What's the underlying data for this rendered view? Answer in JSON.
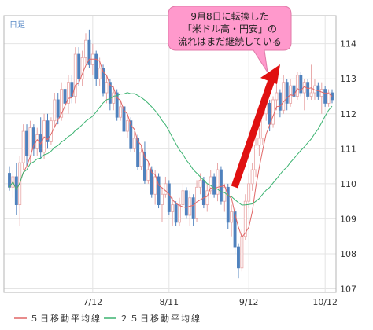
{
  "chart_data": {
    "type": "candlestick",
    "corner_label": "日足",
    "title": "",
    "xlabel": "",
    "ylabel": "",
    "ylim": [
      106.9,
      114.8
    ],
    "yticks": [
      107,
      108,
      109,
      110,
      111,
      112,
      113,
      114
    ],
    "xticks": [
      {
        "label": "7/12",
        "x": 24
      },
      {
        "label": "8/11",
        "x": 46
      },
      {
        "label": "9/12",
        "x": 69
      },
      {
        "label": "10/12",
        "x": 91
      }
    ],
    "grid": true,
    "legend": {
      "placement": "bottom-left",
      "entries": [
        {
          "label": "５日移動平均線",
          "color": "#e06666"
        },
        {
          "label": "２５日移動平均線",
          "color": "#3cb371"
        }
      ]
    },
    "colors": {
      "up": "#e8a7a7",
      "down": "#4f81bd",
      "ma5": "#e06666",
      "ma25": "#3cb371",
      "arrow": "#e01010",
      "callout": "#ff99cc"
    },
    "annotation": {
      "lines": [
        "9月8日に転換した",
        "「米ドル高・円安」の",
        "流れはまだ継続している"
      ]
    },
    "ohlc": [
      [
        110.3,
        110.5,
        109.8,
        109.9
      ],
      [
        109.9,
        110.4,
        109.6,
        110.2
      ],
      [
        110.2,
        110.6,
        109.1,
        109.4
      ],
      [
        109.4,
        110.8,
        108.8,
        110.6
      ],
      [
        110.6,
        111.7,
        110.4,
        111.5
      ],
      [
        111.5,
        111.7,
        110.5,
        110.8
      ],
      [
        110.8,
        111.8,
        110.6,
        111.6
      ],
      [
        111.6,
        111.7,
        110.8,
        111.0
      ],
      [
        111.0,
        111.6,
        110.8,
        111.4
      ],
      [
        111.4,
        111.9,
        110.7,
        110.9
      ],
      [
        110.9,
        112.0,
        110.7,
        111.8
      ],
      [
        111.8,
        112.0,
        111.0,
        111.2
      ],
      [
        111.2,
        111.9,
        111.1,
        111.8
      ],
      [
        111.8,
        112.6,
        111.6,
        112.4
      ],
      [
        112.4,
        112.6,
        111.7,
        111.9
      ],
      [
        111.9,
        112.9,
        111.8,
        112.7
      ],
      [
        112.7,
        112.8,
        112.1,
        112.3
      ],
      [
        112.3,
        113.1,
        112.0,
        112.9
      ],
      [
        112.9,
        113.1,
        112.3,
        112.5
      ],
      [
        112.5,
        113.9,
        112.3,
        113.7
      ],
      [
        113.7,
        113.9,
        112.8,
        113.0
      ],
      [
        113.0,
        113.8,
        112.8,
        113.6
      ],
      [
        113.6,
        114.3,
        113.4,
        114.1
      ],
      [
        114.1,
        114.4,
        113.3,
        113.4
      ],
      [
        113.4,
        114.0,
        113.1,
        113.7
      ],
      [
        113.7,
        113.8,
        112.8,
        113.0
      ],
      [
        113.0,
        113.6,
        112.8,
        113.3
      ],
      [
        113.3,
        113.4,
        112.5,
        112.6
      ],
      [
        112.6,
        113.1,
        112.3,
        112.9
      ],
      [
        112.9,
        113.0,
        112.1,
        112.3
      ],
      [
        112.3,
        112.8,
        112.1,
        112.6
      ],
      [
        112.6,
        112.7,
        111.8,
        111.9
      ],
      [
        111.9,
        112.4,
        111.8,
        112.2
      ],
      [
        112.2,
        112.3,
        111.4,
        111.5
      ],
      [
        111.5,
        112.0,
        111.3,
        111.8
      ],
      [
        111.8,
        111.9,
        110.9,
        111.0
      ],
      [
        111.0,
        111.5,
        110.9,
        111.3
      ],
      [
        111.3,
        111.4,
        110.4,
        110.5
      ],
      [
        110.5,
        111.1,
        110.4,
        110.9
      ],
      [
        110.9,
        111.2,
        110.0,
        110.1
      ],
      [
        110.1,
        110.6,
        110.0,
        110.4
      ],
      [
        110.4,
        110.5,
        109.6,
        109.7
      ],
      [
        109.7,
        110.4,
        109.4,
        110.2
      ],
      [
        110.2,
        110.3,
        109.3,
        109.4
      ],
      [
        109.4,
        109.9,
        108.9,
        109.7
      ],
      [
        109.7,
        110.2,
        109.6,
        110.0
      ],
      [
        110.0,
        110.1,
        109.1,
        109.2
      ],
      [
        109.2,
        109.6,
        108.8,
        109.4
      ],
      [
        109.4,
        109.5,
        108.8,
        108.9
      ],
      [
        108.9,
        109.6,
        108.8,
        109.4
      ],
      [
        109.4,
        110.0,
        109.2,
        109.8
      ],
      [
        109.8,
        109.9,
        109.0,
        109.1
      ],
      [
        109.1,
        109.8,
        108.8,
        109.6
      ],
      [
        109.6,
        109.7,
        108.8,
        109.0
      ],
      [
        109.0,
        110.1,
        108.9,
        109.9
      ],
      [
        109.9,
        110.3,
        109.7,
        110.1
      ],
      [
        110.1,
        110.2,
        109.3,
        109.4
      ],
      [
        109.4,
        110.0,
        109.2,
        109.8
      ],
      [
        109.8,
        110.4,
        109.7,
        110.2
      ],
      [
        110.2,
        110.3,
        109.6,
        109.7
      ],
      [
        109.7,
        110.6,
        109.5,
        110.4
      ],
      [
        110.4,
        110.5,
        109.4,
        109.5
      ],
      [
        109.5,
        110.0,
        109.2,
        109.9
      ],
      [
        109.9,
        110.0,
        108.7,
        108.9
      ],
      [
        108.9,
        109.4,
        108.5,
        109.2
      ],
      [
        109.2,
        109.3,
        108.0,
        108.2
      ],
      [
        108.2,
        108.3,
        107.3,
        107.6
      ],
      [
        107.6,
        108.7,
        107.5,
        108.5
      ],
      [
        108.5,
        109.7,
        108.4,
        109.5
      ],
      [
        109.5,
        110.3,
        109.3,
        110.0
      ],
      [
        110.0,
        110.6,
        109.8,
        110.4
      ],
      [
        110.4,
        111.3,
        110.2,
        111.1
      ],
      [
        111.1,
        111.6,
        110.8,
        111.3
      ],
      [
        111.3,
        112.2,
        111.1,
        112.0
      ],
      [
        112.0,
        112.5,
        111.8,
        112.3
      ],
      [
        112.3,
        112.4,
        111.5,
        111.7
      ],
      [
        111.7,
        112.5,
        111.6,
        112.4
      ],
      [
        112.4,
        112.9,
        112.1,
        112.6
      ],
      [
        112.6,
        112.7,
        111.9,
        112.1
      ],
      [
        112.1,
        113.1,
        112.0,
        112.9
      ],
      [
        112.9,
        113.0,
        112.1,
        112.3
      ],
      [
        112.3,
        113.0,
        112.2,
        112.8
      ],
      [
        112.8,
        113.2,
        112.3,
        112.5
      ],
      [
        112.5,
        113.2,
        112.4,
        113.1
      ],
      [
        113.1,
        113.2,
        112.5,
        112.6
      ],
      [
        112.6,
        113.0,
        112.1,
        112.9
      ],
      [
        112.9,
        113.0,
        112.4,
        112.5
      ],
      [
        112.5,
        113.4,
        112.4,
        112.6
      ],
      [
        112.6,
        113.0,
        112.4,
        112.8
      ],
      [
        112.8,
        112.9,
        112.4,
        112.5
      ],
      [
        112.5,
        112.9,
        112.0,
        112.7
      ],
      [
        112.7,
        112.8,
        112.2,
        112.3
      ],
      [
        112.3,
        112.7,
        112.2,
        112.6
      ],
      [
        112.6,
        112.7,
        112.3,
        112.4
      ]
    ]
  }
}
